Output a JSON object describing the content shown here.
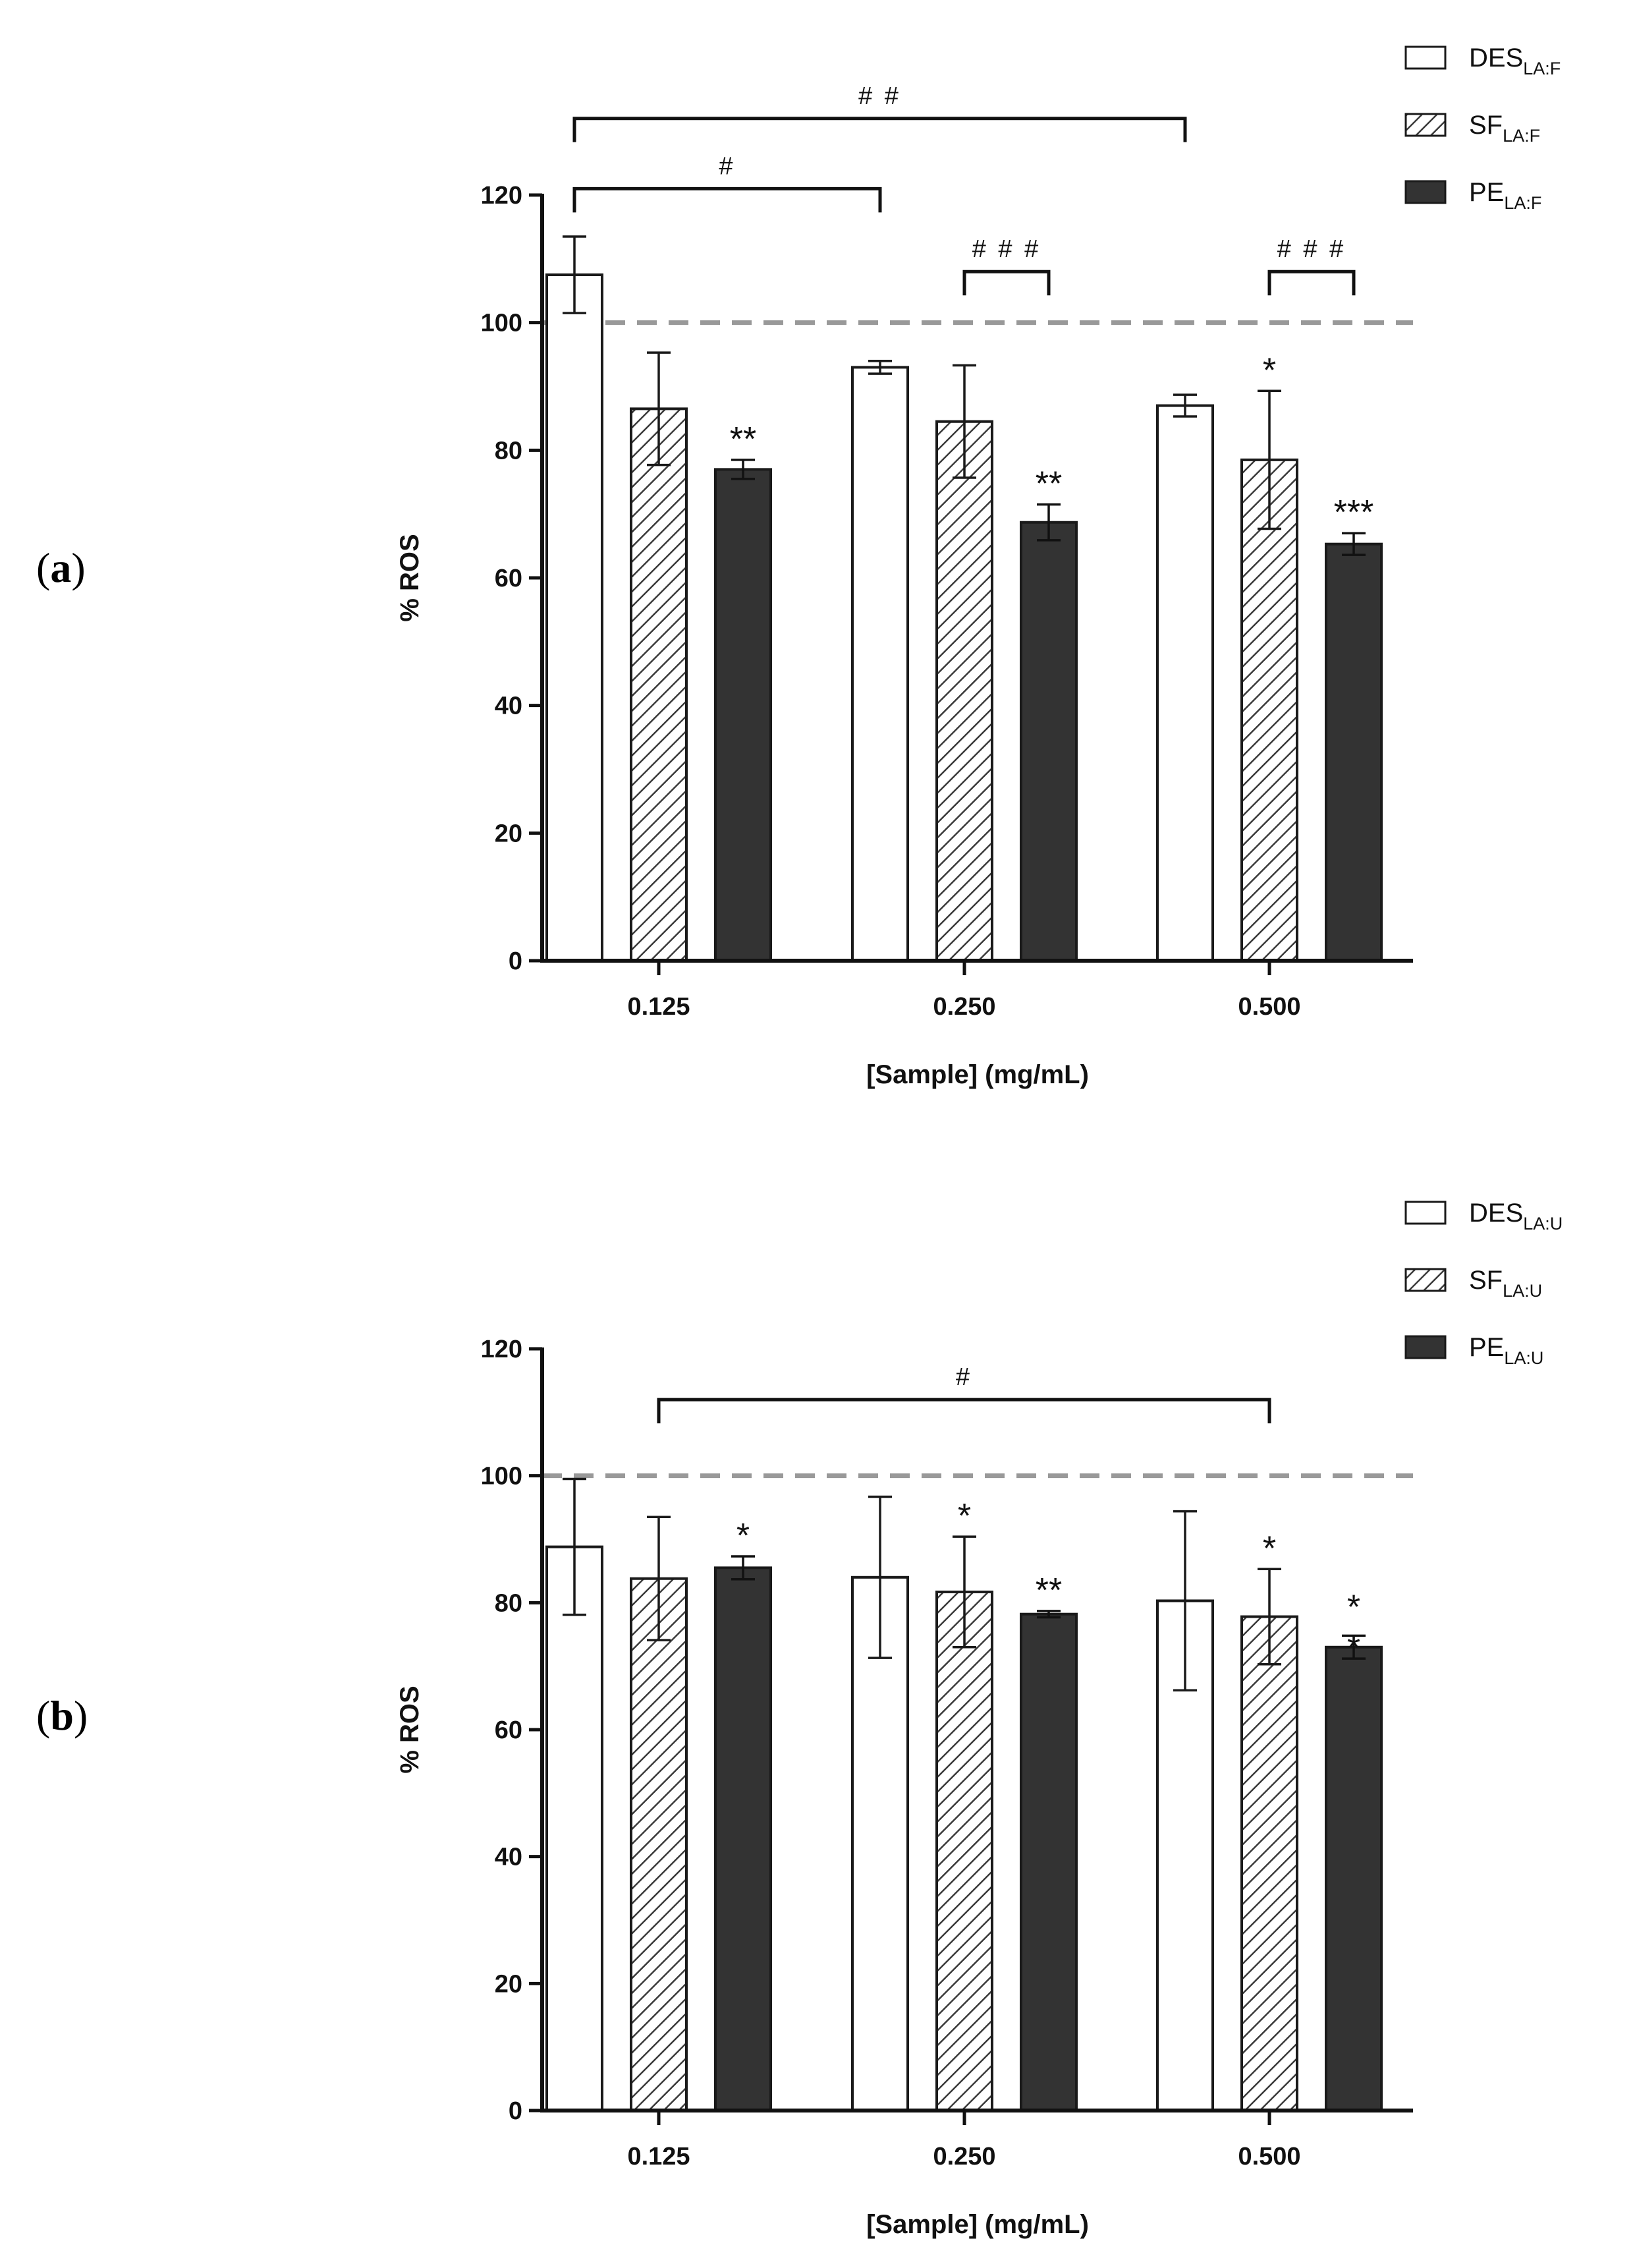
{
  "figure": {
    "label_a": "a",
    "label_b": "b"
  },
  "colors": {
    "desc": "#ffffff",
    "pe": "#333333",
    "stroke": "#1a1a1a",
    "hatch": "#3a3a3a",
    "reference": "#999999"
  },
  "chart_data": [
    {
      "type": "bar",
      "panel": "a",
      "title": "",
      "xlabel": "[Sample] (mg/mL)",
      "ylabel": "% ROS",
      "ylim": [
        0,
        120
      ],
      "yticks": [
        "0",
        "20",
        "40",
        "60",
        "80",
        "100",
        "120"
      ],
      "categories": [
        "0.125",
        "0.250",
        "0.500"
      ],
      "reference_line": 100,
      "series": [
        {
          "name": "DES",
          "sub": "LA:F",
          "style": "open",
          "values": [
            107.5,
            93,
            87
          ],
          "errors": [
            6,
            1,
            1.7
          ],
          "annotations": [
            "",
            "",
            ""
          ]
        },
        {
          "name": "SF",
          "sub": "LA:F",
          "style": "hatched",
          "values": [
            86.5,
            84.5,
            78.5
          ],
          "errors": [
            8.8,
            8.8,
            10.8
          ],
          "annotations": [
            "",
            "",
            "*"
          ]
        },
        {
          "name": "PE",
          "sub": "LA:F",
          "style": "filled",
          "values": [
            77,
            68.7,
            65.3
          ],
          "errors": [
            1.5,
            2.8,
            1.7
          ],
          "annotations": [
            "**",
            "**",
            "***"
          ]
        }
      ],
      "brackets": [
        {
          "label": "# #",
          "from_group": 0,
          "from_series": 0,
          "to_group": 2,
          "to_series": 0,
          "level": 132
        },
        {
          "label": "#",
          "from_group": 0,
          "from_series": 0,
          "to_group": 1,
          "to_series": 0,
          "level": 121
        },
        {
          "label": "# # #",
          "from_group": 1,
          "from_series": 1,
          "to_group": 1,
          "to_series": 2,
          "level": 108
        },
        {
          "label": "# # #",
          "from_group": 2,
          "from_series": 1,
          "to_group": 2,
          "to_series": 2,
          "level": 108
        }
      ]
    },
    {
      "type": "bar",
      "panel": "b",
      "title": "",
      "xlabel": "[Sample] (mg/mL)",
      "ylabel": "% ROS",
      "ylim": [
        0,
        120
      ],
      "yticks": [
        "0",
        "20",
        "40",
        "60",
        "80",
        "100",
        "120"
      ],
      "categories": [
        "0.125",
        "0.250",
        "0.500"
      ],
      "reference_line": 100,
      "series": [
        {
          "name": "DES",
          "sub": "LA:U",
          "style": "open",
          "values": [
            88.8,
            84,
            80.3
          ],
          "errors": [
            10.7,
            12.7,
            14.1
          ],
          "annotations": [
            "",
            "",
            ""
          ]
        },
        {
          "name": "SF",
          "sub": "LA:U",
          "style": "hatched",
          "values": [
            83.8,
            81.7,
            77.8
          ],
          "errors": [
            9.7,
            8.7,
            7.5
          ],
          "annotations": [
            "",
            "*",
            "*"
          ]
        },
        {
          "name": "PE",
          "sub": "LA:U",
          "style": "filled",
          "values": [
            85.5,
            78.2,
            73
          ],
          "errors": [
            1.8,
            0.5,
            1.8
          ],
          "annotations": [
            "*",
            "**",
            "*\n*"
          ]
        }
      ],
      "brackets": [
        {
          "label": "#",
          "from_group": 0,
          "from_series": 1,
          "to_group": 2,
          "to_series": 1,
          "level": 112
        }
      ]
    }
  ]
}
